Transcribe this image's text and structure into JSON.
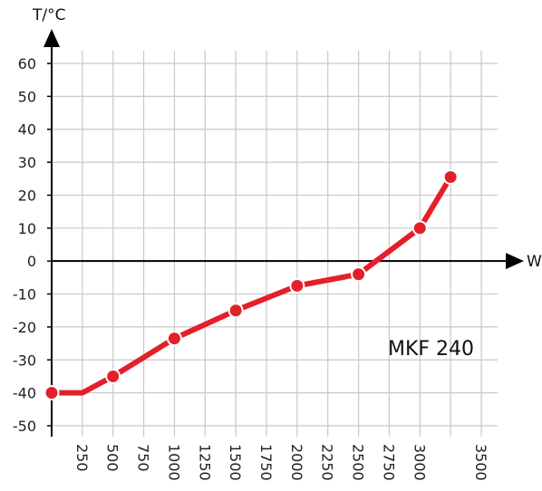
{
  "chart_data": {
    "type": "line",
    "title": "",
    "xlabel": "W",
    "ylabel": "T/°C",
    "xlim": [
      0,
      3500
    ],
    "ylim": [
      -50,
      60
    ],
    "x_ticks": [
      250,
      500,
      750,
      1000,
      1250,
      1500,
      1750,
      2000,
      2250,
      2500,
      2750,
      3000,
      3500
    ],
    "y_ticks": [
      60,
      50,
      40,
      30,
      20,
      10,
      0,
      -10,
      -20,
      -30,
      -40,
      -50
    ],
    "grid": true,
    "series_color": "#e3202a",
    "line_points": [
      [
        0,
        -40
      ],
      [
        250,
        -40
      ],
      [
        500,
        -35
      ],
      [
        1000,
        -23.5
      ],
      [
        1500,
        -15
      ],
      [
        2000,
        -7.5
      ],
      [
        2500,
        -4
      ],
      [
        3000,
        10
      ],
      [
        3250,
        25.5
      ]
    ],
    "marker_points": [
      [
        0,
        -40
      ],
      [
        500,
        -35
      ],
      [
        1000,
        -23.5
      ],
      [
        1500,
        -15
      ],
      [
        2000,
        -7.5
      ],
      [
        2500,
        -4
      ],
      [
        3000,
        10
      ],
      [
        3250,
        25.5
      ]
    ],
    "annotation": "MKF 240"
  }
}
